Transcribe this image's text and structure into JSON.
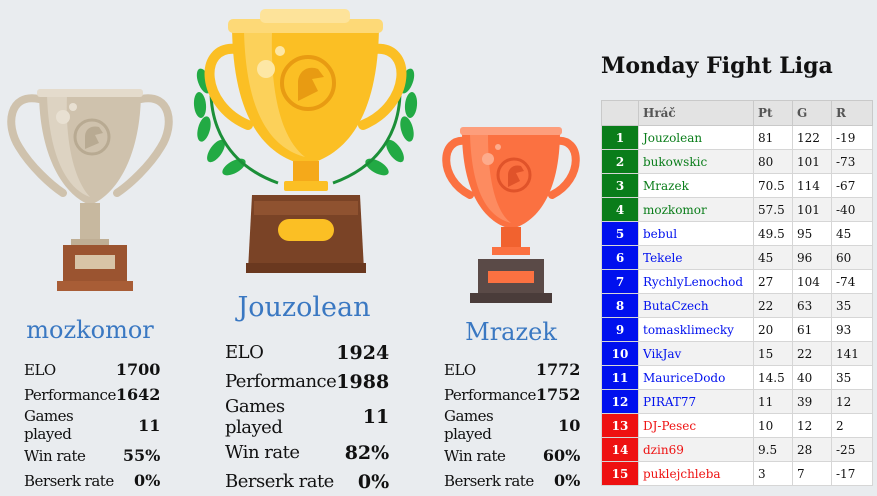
{
  "podium": [
    {
      "place": "second",
      "name": "mozkomor",
      "stats": [
        {
          "label": "ELO",
          "value": "1700"
        },
        {
          "label": "Performance",
          "value": "1642"
        },
        {
          "label": "Games played",
          "value": "11"
        },
        {
          "label": "Win rate",
          "value": "55%"
        },
        {
          "label": "Berserk rate",
          "value": "0%"
        }
      ]
    },
    {
      "place": "first",
      "name": "Jouzolean",
      "stats": [
        {
          "label": "ELO",
          "value": "1924"
        },
        {
          "label": "Performance",
          "value": "1988"
        },
        {
          "label": "Games played",
          "value": "11"
        },
        {
          "label": "Win rate",
          "value": "82%"
        },
        {
          "label": "Berserk rate",
          "value": "0%"
        }
      ]
    },
    {
      "place": "third",
      "name": "Mrazek",
      "stats": [
        {
          "label": "ELO",
          "value": "1772"
        },
        {
          "label": "Performance",
          "value": "1752"
        },
        {
          "label": "Games played",
          "value": "10"
        },
        {
          "label": "Win rate",
          "value": "60%"
        },
        {
          "label": "Berserk rate",
          "value": "0%"
        }
      ]
    }
  ],
  "trophy_colors": {
    "gold": "#fbbf24",
    "silver": "#cfc2ad",
    "bronze": "#fb7141"
  },
  "league": {
    "title": "Monday Fight Liga",
    "columns": [
      "",
      "Hráč",
      "Pt",
      "G",
      "R"
    ],
    "zone_colors": {
      "green": "#0a7d1a",
      "blue": "#0010ee",
      "red": "#ee1111"
    },
    "rows": [
      {
        "rank": "1",
        "player": "Jouzolean",
        "pt": "81",
        "g": "122",
        "r": "-19",
        "zone": "green"
      },
      {
        "rank": "2",
        "player": "bukowskic",
        "pt": "80",
        "g": "101",
        "r": "-73",
        "zone": "green"
      },
      {
        "rank": "3",
        "player": "Mrazek",
        "pt": "70.5",
        "g": "114",
        "r": "-67",
        "zone": "green"
      },
      {
        "rank": "4",
        "player": "mozkomor",
        "pt": "57.5",
        "g": "101",
        "r": "-40",
        "zone": "green"
      },
      {
        "rank": "5",
        "player": "bebul",
        "pt": "49.5",
        "g": "95",
        "r": "45",
        "zone": "blue"
      },
      {
        "rank": "6",
        "player": "Tekele",
        "pt": "45",
        "g": "96",
        "r": "60",
        "zone": "blue"
      },
      {
        "rank": "7",
        "player": "RychlyLenochod",
        "pt": "27",
        "g": "104",
        "r": "-74",
        "zone": "blue"
      },
      {
        "rank": "8",
        "player": "ButaCzech",
        "pt": "22",
        "g": "63",
        "r": "35",
        "zone": "blue"
      },
      {
        "rank": "9",
        "player": "tomasklimecky",
        "pt": "20",
        "g": "61",
        "r": "93",
        "zone": "blue"
      },
      {
        "rank": "10",
        "player": "VikJav",
        "pt": "15",
        "g": "22",
        "r": "141",
        "zone": "blue"
      },
      {
        "rank": "11",
        "player": "MauriceDodo",
        "pt": "14.5",
        "g": "40",
        "r": "35",
        "zone": "blue"
      },
      {
        "rank": "12",
        "player": "PIRAT77",
        "pt": "11",
        "g": "39",
        "r": "12",
        "zone": "blue"
      },
      {
        "rank": "13",
        "player": "DJ-Pesec",
        "pt": "10",
        "g": "12",
        "r": "2",
        "zone": "red"
      },
      {
        "rank": "14",
        "player": "dzin69",
        "pt": "9.5",
        "g": "28",
        "r": "-25",
        "zone": "red"
      },
      {
        "rank": "15",
        "player": "puklejchleba",
        "pt": "3",
        "g": "7",
        "r": "-17",
        "zone": "red"
      }
    ]
  }
}
